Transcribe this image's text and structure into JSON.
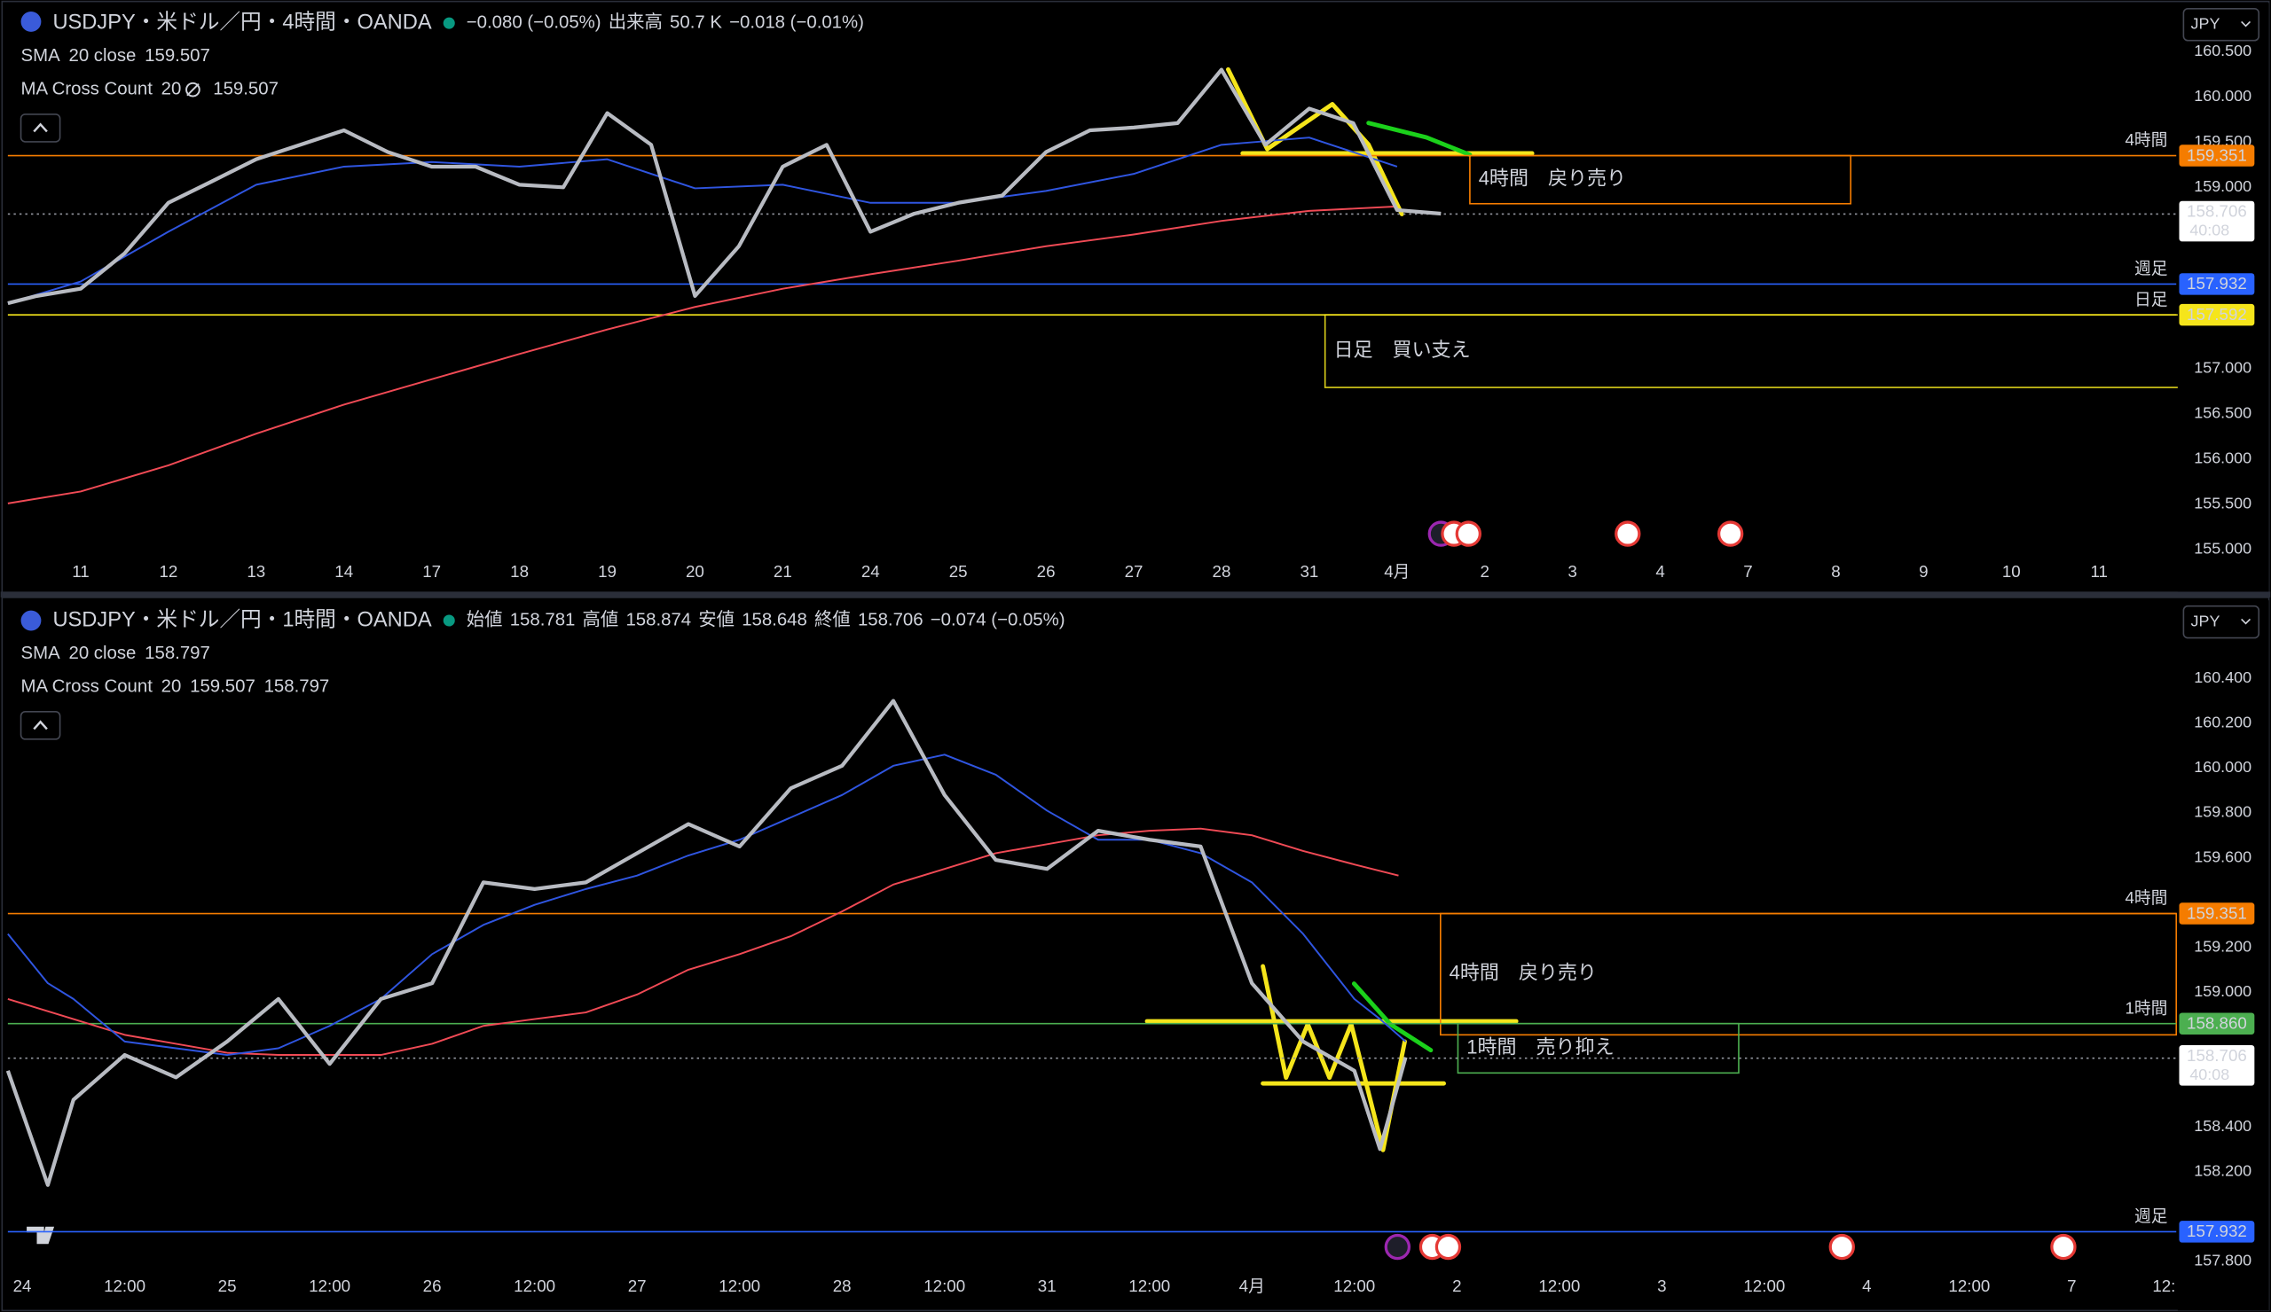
{
  "chart_data": [
    {
      "type": "line",
      "title": "USDJPY・米ドル／円・4時間・OANDA",
      "quote": [
        {
          "text": "−0.080 (−0.05%)",
          "color": "#f23645"
        },
        {
          "text": "出来高",
          "color": "#d1d4dc"
        },
        {
          "text": "50.7 K",
          "color": "#f23645"
        },
        {
          "text": "−0.018 (−0.01%)",
          "color": "#f23645"
        }
      ],
      "indicators": [
        {
          "parts": [
            {
              "text": "SMA",
              "color": "#d1d4dc"
            },
            {
              "text": "20 close",
              "color": "#9598a1"
            },
            {
              "text": "159.507",
              "color": "#2962ff"
            }
          ]
        },
        {
          "parts": [
            {
              "text": "MA Cross Count",
              "color": "#d1d4dc"
            },
            {
              "text": "20",
              "color": "#9598a1"
            },
            {
              "text": "159.507",
              "color": "#2962ff"
            }
          ]
        }
      ],
      "currency": "JPY",
      "xlim": [
        -0.83,
        23.88
      ],
      "xticks": [
        {
          "value": 0,
          "label": "11"
        },
        {
          "value": 1,
          "label": "12"
        },
        {
          "value": 2,
          "label": "13"
        },
        {
          "value": 3,
          "label": "14"
        },
        {
          "value": 4,
          "label": "17"
        },
        {
          "value": 5,
          "label": "18"
        },
        {
          "value": 6,
          "label": "19"
        },
        {
          "value": 7,
          "label": "20"
        },
        {
          "value": 8,
          "label": "21"
        },
        {
          "value": 9,
          "label": "24"
        },
        {
          "value": 10,
          "label": "25"
        },
        {
          "value": 11,
          "label": "26"
        },
        {
          "value": 12,
          "label": "27"
        },
        {
          "value": 13,
          "label": "28"
        },
        {
          "value": 14,
          "label": "31"
        },
        {
          "value": 15,
          "label": "4月"
        },
        {
          "value": 16,
          "label": "2"
        },
        {
          "value": 17,
          "label": "3"
        },
        {
          "value": 18,
          "label": "4"
        },
        {
          "value": 19,
          "label": "7"
        },
        {
          "value": 20,
          "label": "8"
        },
        {
          "value": 21,
          "label": "9"
        },
        {
          "value": 22,
          "label": "10"
        },
        {
          "value": 23,
          "label": "11"
        }
      ],
      "ylim": [
        154.95,
        161.07
      ],
      "yticks": [
        {
          "value": 160.5,
          "label": "160.500"
        },
        {
          "value": 160,
          "label": "160.000"
        },
        {
          "value": 159.5,
          "label": "159.500"
        },
        {
          "value": 159,
          "label": "159.000"
        },
        {
          "value": 157,
          "label": "157.000"
        },
        {
          "value": 156.5,
          "label": "156.500"
        },
        {
          "value": 156,
          "label": "156.000"
        },
        {
          "value": 155.5,
          "label": "155.500"
        },
        {
          "value": 155,
          "label": "155.000"
        }
      ],
      "series": [
        {
          "color": "#f04a55",
          "x": [
            -0.83,
            0,
            1,
            2,
            3,
            4,
            5,
            6,
            7,
            8,
            9,
            10,
            11,
            12,
            13,
            14,
            15
          ],
          "values": [
            155.51,
            155.64,
            155.93,
            156.28,
            156.6,
            156.88,
            157.16,
            157.43,
            157.68,
            157.88,
            158.04,
            158.19,
            158.35,
            158.48,
            158.63,
            158.74,
            158.79
          ]
        },
        {
          "color": "#2f55e0",
          "x": [
            -0.83,
            0,
            1,
            2,
            3,
            4,
            5,
            6,
            7,
            8,
            9,
            10,
            11,
            12,
            13,
            14,
            15
          ],
          "values": [
            157.72,
            157.96,
            158.51,
            159.03,
            159.23,
            159.28,
            159.23,
            159.31,
            158.99,
            159.03,
            158.83,
            158.83,
            158.96,
            159.15,
            159.47,
            159.55,
            159.23
          ]
        },
        {
          "color": "#b8bbc2",
          "x": [
            -0.83,
            -0.5,
            0,
            0.5,
            1,
            1.5,
            2,
            2.5,
            3,
            3.5,
            4,
            4.5,
            5,
            5.5,
            6,
            6.5,
            7,
            7.5,
            8,
            8.5,
            9,
            9.5,
            10,
            10.5,
            11,
            11.5,
            12,
            12.5,
            13,
            13.5,
            14,
            14.5,
            15,
            15.5
          ],
          "values": [
            157.72,
            157.8,
            157.88,
            158.27,
            158.83,
            159.07,
            159.31,
            159.47,
            159.63,
            159.39,
            159.23,
            159.23,
            159.03,
            159.0,
            159.82,
            159.47,
            157.8,
            158.35,
            159.23,
            159.47,
            158.51,
            158.71,
            158.83,
            158.91,
            159.39,
            159.63,
            159.66,
            159.71,
            160.3,
            159.47,
            159.87,
            159.71,
            158.75,
            158.71
          ]
        }
      ],
      "levels": [
        {
          "label": "4時間",
          "value": 159.351,
          "price_label": "159.351",
          "color": "#f57c00",
          "text_color": "#000000"
        },
        {
          "label": "週足",
          "value": 157.932,
          "price_label": "157.932",
          "color": "#2962ff",
          "text_color": "#ffffff"
        },
        {
          "label": "日足",
          "value": 157.592,
          "price_label": "157.592",
          "color": "#f5e51b",
          "text_color": "#000000"
        }
      ],
      "current": {
        "value": 158.706,
        "countdown": "40:08"
      },
      "boxes": [
        {
          "text": "4時間　戻り売り",
          "color": "#f57c00",
          "x": [
            15.83,
            20.17
          ],
          "y": [
            159.351,
            158.82
          ]
        },
        {
          "text": "日足　買い支え",
          "color": "#d8cc1a",
          "x": [
            14.18,
            23.93
          ],
          "y": [
            157.592,
            156.79
          ]
        }
      ]
    },
    {
      "type": "line",
      "title": "USDJPY・米ドル／円・1時間・OANDA",
      "quote": [
        {
          "text": "始値",
          "color": "#d1d4dc"
        },
        {
          "text": "158.781",
          "color": "#f23645"
        },
        {
          "text": "高値",
          "color": "#d1d4dc"
        },
        {
          "text": "158.874",
          "color": "#f23645"
        },
        {
          "text": "安値",
          "color": "#d1d4dc"
        },
        {
          "text": "158.648",
          "color": "#f23645"
        },
        {
          "text": "終値",
          "color": "#d1d4dc"
        },
        {
          "text": "158.706",
          "color": "#f23645"
        },
        {
          "text": "−0.074 (−0.05%)",
          "color": "#f23645"
        }
      ],
      "indicators": [
        {
          "parts": [
            {
              "text": "SMA",
              "color": "#d1d4dc"
            },
            {
              "text": "20 close",
              "color": "#9598a1"
            },
            {
              "text": "158.797",
              "color": "#2962ff"
            }
          ]
        },
        {
          "parts": [
            {
              "text": "MA Cross Count",
              "color": "#d1d4dc"
            },
            {
              "text": "20",
              "color": "#9598a1"
            },
            {
              "text": "159.507",
              "color": "#f23645"
            },
            {
              "text": "158.797",
              "color": "#2962ff"
            }
          ]
        }
      ],
      "currency": "JPY",
      "xlim": [
        -0.14,
        21.02
      ],
      "xticks": [
        {
          "value": 0,
          "label": "24"
        },
        {
          "value": 1,
          "label": "12:00"
        },
        {
          "value": 2,
          "label": "25"
        },
        {
          "value": 3,
          "label": "12:00"
        },
        {
          "value": 4,
          "label": "26"
        },
        {
          "value": 5,
          "label": "12:00"
        },
        {
          "value": 6,
          "label": "27"
        },
        {
          "value": 7,
          "label": "12:00"
        },
        {
          "value": 8,
          "label": "28"
        },
        {
          "value": 9,
          "label": "12:00"
        },
        {
          "value": 10,
          "label": "31"
        },
        {
          "value": 11,
          "label": "12:00"
        },
        {
          "value": 12,
          "label": "4月"
        },
        {
          "value": 13,
          "label": "12:00"
        },
        {
          "value": 14,
          "label": "2"
        },
        {
          "value": 15,
          "label": "12:00"
        },
        {
          "value": 16,
          "label": "3"
        },
        {
          "value": 17,
          "label": "12:00"
        },
        {
          "value": 18,
          "label": "4"
        },
        {
          "value": 19,
          "label": "12:00"
        },
        {
          "value": 20,
          "label": "7"
        },
        {
          "value": 20.9,
          "label": "12:"
        }
      ],
      "ylim": [
        157.748,
        160.761
      ],
      "yticks": [
        {
          "value": 160.4,
          "label": "160.400"
        },
        {
          "value": 160.2,
          "label": "160.200"
        },
        {
          "value": 160,
          "label": "160.000"
        },
        {
          "value": 159.8,
          "label": "159.800"
        },
        {
          "value": 159.6,
          "label": "159.600"
        },
        {
          "value": 159.2,
          "label": "159.200"
        },
        {
          "value": 159,
          "label": "159.000"
        },
        {
          "value": 158.4,
          "label": "158.400"
        },
        {
          "value": 158.2,
          "label": "158.200"
        },
        {
          "value": 157.8,
          "label": "157.800"
        }
      ],
      "series": [
        {
          "color": "#f04a55",
          "x": [
            -0.14,
            0.5,
            1,
            1.5,
            2,
            2.5,
            3,
            3.5,
            4,
            4.5,
            5,
            5.5,
            6,
            6.5,
            7,
            7.5,
            8,
            8.5,
            9,
            9.5,
            10,
            10.5,
            11,
            11.5,
            12,
            12.5,
            13,
            13.43
          ],
          "values": [
            158.97,
            158.88,
            158.81,
            158.77,
            158.73,
            158.72,
            158.72,
            158.72,
            158.77,
            158.85,
            158.88,
            158.91,
            158.99,
            159.1,
            159.17,
            159.25,
            159.36,
            159.48,
            159.55,
            159.62,
            159.66,
            159.7,
            159.72,
            159.73,
            159.7,
            159.63,
            159.57,
            159.52
          ]
        },
        {
          "color": "#2f55e0",
          "x": [
            -0.14,
            0.25,
            0.5,
            1,
            1.5,
            2,
            2.5,
            3,
            3.5,
            4,
            4.5,
            5,
            5.5,
            6,
            6.5,
            7,
            7.5,
            8,
            8.5,
            9,
            9.5,
            10,
            10.5,
            11,
            11.5,
            12,
            12.5,
            13,
            13.25,
            13.5
          ],
          "values": [
            159.26,
            159.04,
            158.97,
            158.78,
            158.75,
            158.72,
            158.75,
            158.85,
            158.97,
            159.17,
            159.3,
            159.39,
            159.46,
            159.52,
            159.61,
            159.68,
            159.78,
            159.88,
            160.01,
            160.06,
            159.97,
            159.81,
            159.68,
            159.68,
            159.62,
            159.49,
            159.26,
            158.97,
            158.88,
            158.78
          ]
        },
        {
          "color": "#b8bbc2",
          "x": [
            -0.14,
            0.25,
            0.5,
            1,
            1.5,
            2,
            2.5,
            3,
            3.5,
            4,
            4.5,
            5,
            5.5,
            6,
            6.5,
            7,
            7.5,
            8,
            8.5,
            9,
            9.5,
            10,
            10.5,
            11,
            11.5,
            12,
            12.5,
            13,
            13.25,
            13.5
          ],
          "values": [
            158.65,
            158.14,
            158.52,
            158.72,
            158.62,
            158.78,
            158.97,
            158.68,
            158.97,
            159.04,
            159.49,
            159.46,
            159.49,
            159.62,
            159.75,
            159.65,
            159.91,
            160.01,
            160.3,
            159.88,
            159.59,
            159.55,
            159.72,
            159.68,
            159.65,
            159.04,
            158.78,
            158.65,
            158.3,
            158.71
          ]
        }
      ],
      "levels": [
        {
          "label": "4時間",
          "value": 159.351,
          "price_label": "159.351",
          "color": "#f57c00",
          "text_color": "#000000"
        },
        {
          "label": "1時間",
          "value": 158.86,
          "price_label": "158.860",
          "color": "#4caf50",
          "text_color": "#ffffff"
        },
        {
          "label": "週足",
          "value": 157.932,
          "price_label": "157.932",
          "color": "#2962ff",
          "text_color": "#ffffff"
        }
      ],
      "current": {
        "value": 158.706,
        "countdown": "40:08"
      },
      "boxes": [
        {
          "text": "4時間　戻り売り",
          "color": "#f57c00",
          "x": [
            13.84,
            21.02
          ],
          "y": [
            159.351,
            158.81
          ]
        },
        {
          "text": "1時間　売り抑え",
          "color": "#4caf50",
          "x": [
            14.01,
            16.75
          ],
          "y": [
            158.86,
            158.64
          ]
        }
      ]
    }
  ]
}
